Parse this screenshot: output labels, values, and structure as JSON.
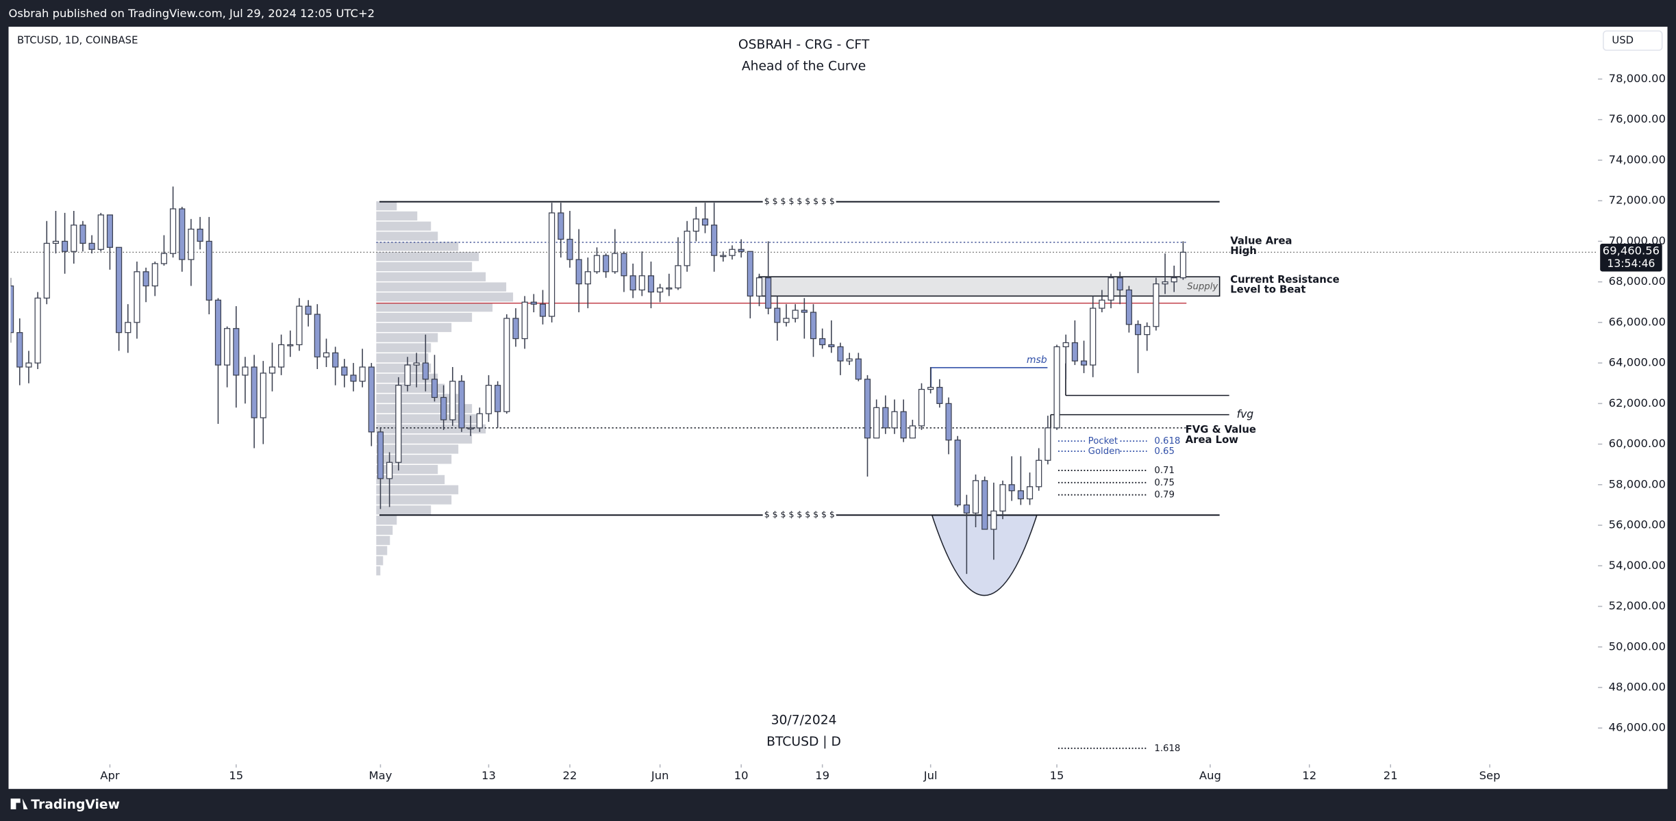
{
  "header": {
    "published": "Osbrah published on TradingView.com, Jul 29, 2024 12:05 UTC+2"
  },
  "footer": {
    "logo": "TradingView"
  },
  "chart_data": {
    "type": "candlestick",
    "title": "OSBRAH - CRG - CFT",
    "subtitle": "Ahead of the Curve",
    "symbol": "BTCUSD, 1D, COINBASE",
    "watermark_date": "30/7/2024",
    "watermark_symbol": "BTCUSD | D",
    "currency": "USD",
    "up_color": "#ffffff",
    "down_color": "#8c9bd1",
    "outline_color": "#3a3f4f",
    "grid": false,
    "x": [
      "03-21",
      "03-22",
      "03-23",
      "03-24",
      "03-25",
      "03-26",
      "03-27",
      "03-28",
      "03-29",
      "03-30",
      "03-31",
      "04-01",
      "04-02",
      "04-03",
      "04-04",
      "04-05",
      "04-06",
      "04-07",
      "04-08",
      "04-09",
      "04-10",
      "04-11",
      "04-12",
      "04-13",
      "04-14",
      "04-15",
      "04-16",
      "04-17",
      "04-18",
      "04-19",
      "04-20",
      "04-21",
      "04-22",
      "04-23",
      "04-24",
      "04-25",
      "04-26",
      "04-27",
      "04-28",
      "04-29",
      "04-30",
      "05-01",
      "05-02",
      "05-03",
      "05-04",
      "05-05",
      "05-06",
      "05-07",
      "05-08",
      "05-09",
      "05-10",
      "05-11",
      "05-12",
      "05-13",
      "05-14",
      "05-15",
      "05-16",
      "05-17",
      "05-18",
      "05-19",
      "05-20",
      "05-21",
      "05-22",
      "05-23",
      "05-24",
      "05-25",
      "05-26",
      "05-27",
      "05-28",
      "05-29",
      "05-30",
      "05-31",
      "06-01",
      "06-02",
      "06-03",
      "06-04",
      "06-05",
      "06-06",
      "06-07",
      "06-08",
      "06-09",
      "06-10",
      "06-11",
      "06-12",
      "06-13",
      "06-14",
      "06-15",
      "06-16",
      "06-17",
      "06-18",
      "06-19",
      "06-20",
      "06-21",
      "06-22",
      "06-23",
      "06-24",
      "06-25",
      "06-26",
      "06-27",
      "06-28",
      "06-29",
      "06-30",
      "07-01",
      "07-02",
      "07-03",
      "07-04",
      "07-05",
      "07-06",
      "07-07",
      "07-08",
      "07-09",
      "07-10",
      "07-11",
      "07-12",
      "07-13",
      "07-14",
      "07-15",
      "07-16",
      "07-17",
      "07-18",
      "07-19",
      "07-20",
      "07-21",
      "07-22",
      "07-23",
      "07-24",
      "07-25",
      "07-26",
      "07-27",
      "07-28",
      "07-29"
    ],
    "open": [
      67800,
      65500,
      63800,
      64000,
      67200,
      69900,
      70000,
      69500,
      70800,
      69900,
      69600,
      71300,
      69700,
      65500,
      66000,
      68500,
      67800,
      68900,
      69400,
      71600,
      69100,
      70600,
      70000,
      67100,
      63900,
      65700,
      63400,
      63800,
      61300,
      63500,
      63800,
      64900,
      64900,
      66800,
      66400,
      64300,
      64500,
      63800,
      63400,
      63100,
      63800,
      60600,
      58300,
      59100,
      62900,
      63900,
      64000,
      63200,
      62300,
      61200,
      63100,
      60800,
      60800,
      61500,
      62900,
      61600,
      66200,
      65200,
      67000,
      66900,
      66300,
      71400,
      70100,
      69100,
      67900,
      68500,
      69300,
      68500,
      69400,
      68300,
      67600,
      68300,
      67500,
      67700,
      67700,
      68800,
      70500,
      71100,
      70800,
      69300,
      69300,
      69600,
      69500,
      67300,
      68200,
      66700,
      66000,
      66200,
      66600,
      66500,
      65200,
      64900,
      64800,
      64100,
      64200,
      63200,
      60300,
      61800,
      60800,
      61600,
      60300,
      60900,
      62700,
      62800,
      62000,
      60200,
      57000,
      56600,
      58200,
      55800,
      56700,
      58000,
      57700,
      57300,
      57900,
      59200,
      60800,
      64800,
      65000,
      64100,
      63900,
      66700,
      67100,
      68200,
      67600,
      65900,
      65400,
      65800,
      67900,
      68000,
      68200
    ],
    "high": [
      68200,
      66200,
      64600,
      67500,
      71000,
      71500,
      71400,
      71500,
      71000,
      70300,
      71400,
      71300,
      69700,
      66900,
      69000,
      68700,
      69000,
      70300,
      72700,
      71700,
      71100,
      71200,
      71200,
      67200,
      65800,
      66800,
      64300,
      64400,
      64100,
      65000,
      65400,
      65600,
      67200,
      67100,
      66900,
      65200,
      64800,
      64200,
      64000,
      64700,
      64000,
      60800,
      59600,
      63300,
      64300,
      64500,
      65400,
      64400,
      62900,
      63800,
      63400,
      61400,
      61800,
      63400,
      63100,
      66400,
      66700,
      67300,
      67400,
      67600,
      71900,
      71900,
      71500,
      70600,
      69200,
      69700,
      69400,
      70600,
      69500,
      68900,
      69500,
      69000,
      67900,
      68400,
      70200,
      71000,
      71700,
      71900,
      71900,
      69500,
      69800,
      70100,
      69500,
      68400,
      70000,
      67300,
      66900,
      66900,
      67200,
      66900,
      65700,
      66100,
      65000,
      64500,
      64500,
      63400,
      62200,
      62400,
      62200,
      62200,
      61200,
      63000,
      63800,
      63200,
      62300,
      60400,
      57500,
      58500,
      58400,
      58100,
      58200,
      59400,
      59400,
      58600,
      59800,
      61400,
      64900,
      65400,
      66100,
      65100,
      67300,
      67600,
      68400,
      68500,
      67800,
      66100,
      66000,
      68200,
      69400,
      68800,
      70000
    ],
    "low": [
      65000,
      62900,
      63000,
      63700,
      66900,
      69400,
      68400,
      68900,
      69500,
      69400,
      69500,
      68600,
      64600,
      64500,
      65200,
      67000,
      67300,
      68800,
      69200,
      68500,
      67800,
      69600,
      66400,
      61000,
      62800,
      61800,
      62000,
      59800,
      60000,
      62600,
      63400,
      64300,
      64600,
      65800,
      63700,
      63800,
      62900,
      62800,
      62600,
      62800,
      59900,
      56800,
      56900,
      58700,
      62600,
      62800,
      62600,
      62100,
      60700,
      60900,
      60600,
      60400,
      60600,
      61100,
      60800,
      61500,
      64800,
      64700,
      66500,
      65900,
      66000,
      69200,
      68700,
      66500,
      66700,
      68400,
      68200,
      68400,
      67500,
      67200,
      67300,
      66700,
      67000,
      67300,
      67600,
      68500,
      70000,
      70400,
      68500,
      69000,
      69100,
      69200,
      66200,
      66800,
      66400,
      65100,
      65800,
      66000,
      65200,
      64300,
      64700,
      64500,
      63400,
      63900,
      63100,
      58400,
      60300,
      60500,
      60500,
      60100,
      60300,
      60700,
      62500,
      61800,
      59500,
      56900,
      53600,
      55900,
      55800,
      54300,
      56300,
      57200,
      57000,
      57000,
      57700,
      59000,
      60700,
      63200,
      63900,
      63500,
      63300,
      66500,
      66700,
      66900,
      65500,
      63500,
      64600,
      65600,
      67400,
      67500,
      68100
    ],
    "close": [
      65500,
      63800,
      64000,
      67200,
      69900,
      70000,
      69500,
      70800,
      69900,
      69600,
      71300,
      69700,
      65500,
      66000,
      68500,
      67800,
      68900,
      69400,
      71600,
      69100,
      70600,
      70000,
      67100,
      63900,
      65700,
      63400,
      63800,
      61300,
      63500,
      63800,
      64900,
      64900,
      66800,
      66400,
      64300,
      64500,
      63800,
      63400,
      63100,
      63800,
      60600,
      58300,
      59100,
      62900,
      63900,
      64000,
      63200,
      62300,
      61200,
      63100,
      60800,
      60800,
      61500,
      62900,
      61600,
      66200,
      65200,
      67000,
      66900,
      66300,
      71400,
      70100,
      69100,
      67900,
      68500,
      69300,
      68500,
      69400,
      68300,
      67600,
      68300,
      67500,
      67700,
      67700,
      68800,
      70500,
      71100,
      70800,
      69300,
      69300,
      69600,
      69500,
      67300,
      68200,
      66700,
      66000,
      66200,
      66600,
      66500,
      65200,
      64900,
      64800,
      64100,
      64200,
      63200,
      60300,
      61800,
      60800,
      61600,
      60300,
      60900,
      62700,
      62800,
      62000,
      60200,
      57000,
      56600,
      58200,
      55800,
      56700,
      58000,
      57700,
      57300,
      57900,
      59200,
      60800,
      64800,
      65000,
      64100,
      63900,
      66700,
      67100,
      68200,
      67600,
      65900,
      65400,
      65800,
      67900,
      68000,
      68200,
      69460.56
    ],
    "xlim": [
      "03-21",
      "09-13"
    ],
    "xticks": [
      {
        "value": "04-01",
        "label": "Apr"
      },
      {
        "value": "04-15",
        "label": "15"
      },
      {
        "value": "05-01",
        "label": "May"
      },
      {
        "value": "05-13",
        "label": "13"
      },
      {
        "value": "05-22",
        "label": "22"
      },
      {
        "value": "06-01",
        "label": "Jun"
      },
      {
        "value": "06-10",
        "label": "10"
      },
      {
        "value": "06-19",
        "label": "19"
      },
      {
        "value": "07-01",
        "label": "Jul"
      },
      {
        "value": "07-15",
        "label": "15"
      },
      {
        "value": "08-01",
        "label": "Aug"
      },
      {
        "value": "08-12",
        "label": "12"
      },
      {
        "value": "08-21",
        "label": "21"
      },
      {
        "value": "09-01",
        "label": "Sep"
      }
    ],
    "ylim": [
      44210,
      80580
    ],
    "yticks": [
      {
        "value": 46000,
        "label": "46,000.00"
      },
      {
        "value": 48000,
        "label": "48,000.00"
      },
      {
        "value": 50000,
        "label": "50,000.00"
      },
      {
        "value": 52000,
        "label": "52,000.00"
      },
      {
        "value": 54000,
        "label": "54,000.00"
      },
      {
        "value": 56000,
        "label": "56,000.00"
      },
      {
        "value": 58000,
        "label": "58,000.00"
      },
      {
        "value": 60000,
        "label": "60,000.00"
      },
      {
        "value": 62000,
        "label": "62,000.00"
      },
      {
        "value": 64000,
        "label": "64,000.00"
      },
      {
        "value": 66000,
        "label": "66,000.00"
      },
      {
        "value": 68000,
        "label": "68,000.00"
      },
      {
        "value": 70000,
        "label": "70,000.00"
      },
      {
        "value": 72000,
        "label": "72,000.00"
      },
      {
        "value": 74000,
        "label": "74,000.00"
      },
      {
        "value": 76000,
        "label": "76,000.00"
      },
      {
        "value": 78000,
        "label": "78,000.00"
      }
    ],
    "last_price": {
      "value": 69460.56,
      "label": "69,460.56"
    },
    "countdown": "13:54:46",
    "range_high": 71950,
    "range_low": 56500,
    "range_marker": "$ $ $ $ $ $ $ $ $",
    "value_area_high": {
      "price": 69950,
      "label": [
        "Value Area",
        "High"
      ]
    },
    "poc": {
      "price": 66950,
      "color": "#c2414b"
    },
    "supply": {
      "top": 68250,
      "bottom": 67300,
      "label": "Supply"
    },
    "resistance_label": [
      "Current Resistance",
      "Level to Beat"
    ],
    "msb": {
      "price": 63770,
      "label": "msb"
    },
    "fvg": {
      "top": 62400,
      "bottom": 61450,
      "label": "fvg"
    },
    "value_area_low": {
      "price": 60800,
      "label": [
        "FVG & Value",
        "Area Low"
      ]
    },
    "pocket_labels": [
      "Pocket",
      "Golden"
    ],
    "fib": [
      {
        "ratio": 0.618,
        "price": 60150
      },
      {
        "ratio": 0.65,
        "price": 59650
      },
      {
        "ratio": 0.71,
        "price": 58700
      },
      {
        "ratio": 0.75,
        "price": 58100
      },
      {
        "ratio": 0.79,
        "price": 57500
      },
      {
        "ratio": 1.618,
        "price": 45000
      }
    ],
    "volume_profile": {
      "color": "#c4c7d0",
      "bins": [
        53500,
        54000,
        54500,
        55000,
        55500,
        56000,
        56500,
        57000,
        57500,
        58000,
        58500,
        59000,
        59500,
        60000,
        60500,
        61000,
        61500,
        62000,
        62500,
        63000,
        63500,
        64000,
        64500,
        65000,
        65500,
        66000,
        66500,
        67000,
        67500,
        68000,
        68500,
        69000,
        69500,
        70000,
        70500,
        71000,
        71500,
        72000
      ],
      "values": [
        3,
        5,
        8,
        10,
        12,
        15,
        40,
        55,
        60,
        50,
        45,
        55,
        60,
        70,
        80,
        75,
        70,
        60,
        50,
        45,
        40,
        38,
        40,
        45,
        55,
        70,
        85,
        100,
        95,
        80,
        70,
        75,
        60,
        45,
        40,
        30,
        15
      ]
    }
  }
}
